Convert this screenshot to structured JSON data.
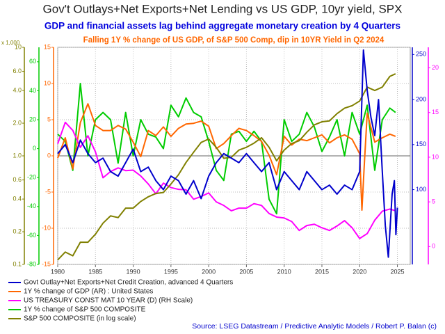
{
  "chart_data": {
    "type": "line",
    "title": "Gov't Outlays+Net Exports+Net Lending vs US GDP, 10yr yield, SPX",
    "subtitle": "GDP and financial assets lag behind aggregate monetary creation by 4 Quarters",
    "note": "Falling 1Y % change of US GDP, of S&P 500 Comp, dip in 10YR Yield in Q2 2024",
    "source": "Source:  LSEG Datastream / Predictive Analytic Models / Robert P. Balan (c)",
    "xlim": [
      1980,
      2026.7
    ],
    "xticks": [
      1980,
      1985,
      1990,
      1995,
      2000,
      2005,
      2010,
      2015,
      2020,
      2025
    ],
    "grid": true,
    "series": [
      {
        "name": "Govt Outlay+Net Exports+Net Credit Creation, advanced 4 Quarters",
        "color": "#0000cc",
        "side": "right",
        "ylim": [
          17,
          258
        ],
        "yticks": [
          100,
          150,
          200,
          250
        ],
        "x": [
          1980,
          1981,
          1982,
          1983,
          1984,
          1985,
          1986,
          1987,
          1988,
          1989,
          1990,
          1991,
          1992,
          1993,
          1994,
          1995,
          1996,
          1997,
          1998,
          1999,
          2000,
          2001,
          2002,
          2003,
          2004,
          2005,
          2006,
          2007,
          2008,
          2009,
          2010,
          2011,
          2012,
          2013,
          2014,
          2015,
          2016,
          2017,
          2018,
          2019,
          2020,
          2020.5,
          2021,
          2021.5,
          2022,
          2022.5,
          2023,
          2023.4,
          2023.8,
          2024.3,
          2024.6,
          2024.8,
          2025
        ],
        "values": [
          140,
          150,
          130,
          155,
          140,
          130,
          135,
          120,
          115,
          130,
          145,
          120,
          125,
          110,
          100,
          115,
          110,
          95,
          110,
          90,
          115,
          130,
          140,
          135,
          130,
          140,
          130,
          120,
          130,
          100,
          120,
          110,
          100,
          120,
          110,
          100,
          105,
          95,
          105,
          100,
          120,
          255,
          210,
          180,
          160,
          200,
          120,
          60,
          25,
          95,
          110,
          50,
          80
        ]
      },
      {
        "name": "1Y % change of GDP (AR) : United States",
        "color": "#ff6600",
        "side": "left",
        "ylim": [
          -15,
          15
        ],
        "yticks": [
          -15,
          -10,
          -5,
          0,
          5,
          10,
          15
        ],
        "x": [
          1980,
          1981,
          1982,
          1983,
          1984,
          1985,
          1986,
          1987,
          1988,
          1989,
          1990,
          1991,
          1992,
          1993,
          1994,
          1995,
          1996,
          1997,
          1998,
          1999,
          2000,
          2001,
          2002,
          2003,
          2004,
          2005,
          2006,
          2007,
          2008,
          2009,
          2010,
          2011,
          2012,
          2013,
          2014,
          2015,
          2016,
          2017,
          2018,
          2019,
          2020,
          2020.3,
          2020.6,
          2021,
          2022,
          2023,
          2024,
          2024.75
        ],
        "values": [
          -0.3,
          2.5,
          -1.8,
          4.6,
          7.2,
          4.2,
          3.5,
          3.5,
          4.2,
          3.7,
          1.9,
          -0.1,
          3.5,
          2.8,
          4.0,
          2.7,
          3.8,
          4.4,
          4.5,
          4.8,
          4.1,
          1.0,
          1.7,
          2.8,
          3.8,
          3.5,
          2.8,
          2.0,
          0.1,
          -2.6,
          2.7,
          1.5,
          2.3,
          2.1,
          2.5,
          2.9,
          1.8,
          2.5,
          2.9,
          2.3,
          0.3,
          -7.5,
          -1.5,
          5.9,
          1.9,
          2.5,
          3.0,
          2.7
        ]
      },
      {
        "name": "US TREASURY CONST MAT 10 YEAR (D) (RH Scale)",
        "color": "#ff00ff",
        "side": "right",
        "ylim": [
          -2,
          22.3
        ],
        "yticks": [
          0,
          5,
          10,
          15,
          20
        ],
        "x": [
          1980,
          1981,
          1982,
          1983,
          1984,
          1985,
          1986,
          1987,
          1988,
          1989,
          1990,
          1991,
          1992,
          1993,
          1994,
          1995,
          1996,
          1997,
          1998,
          1999,
          2000,
          2001,
          2002,
          2003,
          2004,
          2005,
          2006,
          2007,
          2008,
          2009,
          2010,
          2011,
          2012,
          2013,
          2014,
          2015,
          2016,
          2017,
          2018,
          2019,
          2020,
          2021,
          2022,
          2023,
          2024,
          2024.75
        ],
        "values": [
          11.5,
          13.9,
          13,
          11.1,
          12.4,
          10.6,
          7.7,
          8.4,
          8.8,
          8.5,
          8.55,
          7.9,
          7.0,
          5.9,
          7.1,
          6.6,
          6.4,
          6.35,
          5.3,
          5.6,
          6.0,
          5.0,
          4.6,
          4.0,
          4.3,
          4.3,
          4.8,
          4.6,
          3.7,
          3.3,
          3.2,
          2.8,
          1.8,
          2.35,
          2.5,
          2.1,
          1.8,
          2.3,
          2.9,
          2.1,
          0.9,
          1.45,
          2.95,
          3.96,
          4.2,
          4.0
        ]
      },
      {
        "name": "1Y % change of S&P 500 COMPOSITE",
        "color": "#00cc00",
        "side": "left",
        "ylim": [
          -80,
          70
        ],
        "yticks": [
          -80,
          -60,
          -40,
          -20,
          0,
          20,
          40,
          60
        ],
        "x": [
          1980,
          1981,
          1982,
          1983,
          1984,
          1985,
          1986,
          1987,
          1988,
          1989,
          1990,
          1991,
          1992,
          1993,
          1994,
          1995,
          1996,
          1997,
          1998,
          1999,
          2000,
          2001,
          2002,
          2003,
          2004,
          2005,
          2006,
          2007,
          2008,
          2009,
          2010,
          2011,
          2012,
          2013,
          2014,
          2015,
          2016,
          2017,
          2018,
          2019,
          2020,
          2021,
          2022,
          2023,
          2024,
          2024.75
        ],
        "values": [
          10,
          5,
          -15,
          45,
          -5,
          20,
          25,
          20,
          -10,
          25,
          -5,
          20,
          10,
          8,
          0,
          30,
          22,
          35,
          25,
          22,
          5,
          -15,
          -22,
          10,
          12,
          5,
          12,
          5,
          -35,
          -45,
          20,
          5,
          10,
          25,
          15,
          -2,
          8,
          20,
          -5,
          25,
          10,
          30,
          -15,
          20,
          28,
          25
        ]
      },
      {
        "name": "S&P 500 COMPOSITE (in log scale)",
        "color": "#808000",
        "side": "left",
        "log": true,
        "axis_note": "x 1,000",
        "ylim": [
          0.1,
          10
        ],
        "yticks": [
          0.1,
          0.2,
          0.4,
          0.6,
          {
            "value": 1,
            "label": "1.0"
          },
          {
            "value": 2,
            "label": "2.0"
          },
          {
            "value": 4,
            "label": "4.0"
          },
          {
            "value": 6,
            "label": "6.0"
          },
          10
        ],
        "x": [
          1980,
          1981,
          1982,
          1983,
          1984,
          1985,
          1986,
          1987,
          1988,
          1989,
          1990,
          1991,
          1992,
          1993,
          1994,
          1995,
          1996,
          1997,
          1998,
          1999,
          2000,
          2001,
          2002,
          2003,
          2004,
          2005,
          2006,
          2007,
          2008,
          2009,
          2010,
          2011,
          2012,
          2013,
          2014,
          2015,
          2016,
          2017,
          2018,
          2019,
          2020,
          2021,
          2022,
          2023,
          2024,
          2024.75
        ],
        "values": [
          0.11,
          0.13,
          0.12,
          0.16,
          0.16,
          0.19,
          0.24,
          0.28,
          0.27,
          0.33,
          0.33,
          0.38,
          0.42,
          0.45,
          0.46,
          0.55,
          0.67,
          0.87,
          1.08,
          1.33,
          1.43,
          1.2,
          0.95,
          0.97,
          1.13,
          1.2,
          1.31,
          1.47,
          1.2,
          0.9,
          1.13,
          1.3,
          1.38,
          1.65,
          1.93,
          2.06,
          2.1,
          2.45,
          2.75,
          2.9,
          3.2,
          4.3,
          4.0,
          4.3,
          5.4,
          5.7
        ]
      }
    ]
  }
}
